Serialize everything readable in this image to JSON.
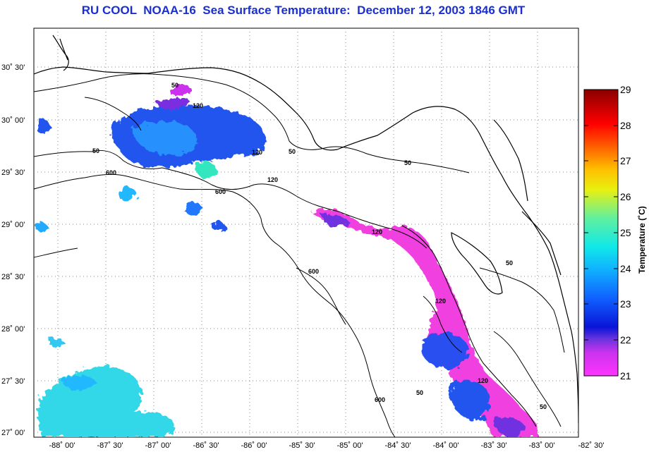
{
  "title": "RU COOL  NOAA-16  Sea Surface Temperature:  December 12, 2003 1846 GMT",
  "lon_labels": [
    "-88˚ 00'",
    "-87˚ 30'",
    "-87˚ 00'",
    "-86˚ 30'",
    "-86˚ 00'",
    "-85˚ 30'",
    "-85˚ 00'",
    "-84˚ 30'",
    "-84˚ 00'",
    "-83˚ 30'",
    "-83˚ 00'",
    "-82˚ 30'"
  ],
  "lat_labels": [
    "30˚ 30'",
    "30˚ 00'",
    "29˚ 30'",
    "29˚ 00'",
    "28˚ 30'",
    "28˚ 00'",
    "27˚ 30'",
    "27˚ 00'"
  ],
  "colorbar": {
    "label": "Temperature (˚C)",
    "ticks": [
      "29",
      "28",
      "27",
      "26",
      "25",
      "24",
      "23",
      "22",
      "21"
    ],
    "min": 21,
    "max": 29
  },
  "contour_labels": [
    "50",
    "120",
    "50",
    "120",
    "50",
    "600",
    "600",
    "120",
    "50",
    "120",
    "600",
    "120",
    "600",
    "120",
    "50",
    "50",
    "50"
  ],
  "colors": {
    "title": "#1a2fd0",
    "land_outline": "#000000",
    "grid": "#777777"
  }
}
